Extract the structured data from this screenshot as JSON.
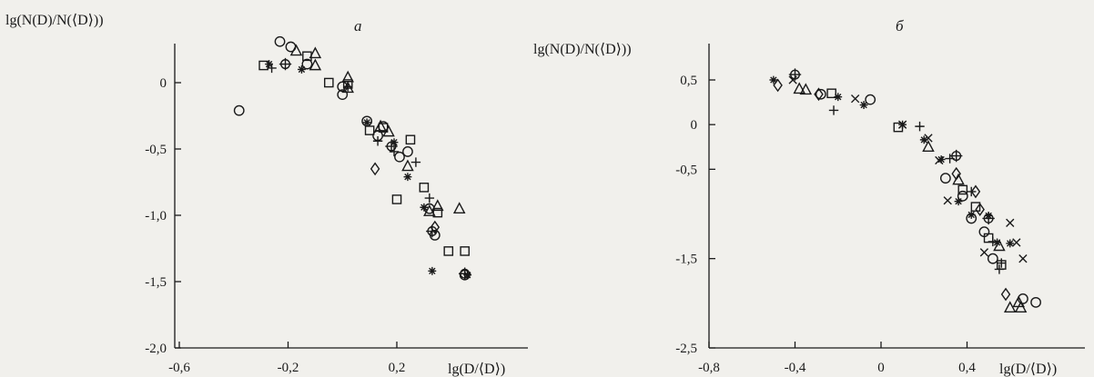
{
  "chart_data": [
    {
      "type": "scatter",
      "panel_label": "a",
      "ylabel": "lg(N(D)/N(⟨D⟩))",
      "xlabel": "lg(D/⟨D⟩)",
      "xlim": [
        -0.6,
        0.65
      ],
      "ylim": [
        -2.0,
        0.35
      ],
      "xticks": [
        -0.6,
        -0.2,
        0.2
      ],
      "xtick_labels": [
        "-0,6",
        "-0,2",
        "0,2"
      ],
      "yticks": [
        0,
        -0.5,
        -1.0,
        -1.5,
        -2.0
      ],
      "ytick_labels": [
        "0",
        "-0,5",
        "-1,0",
        "-1,5",
        "-2,0"
      ],
      "grid": false,
      "series": [
        {
          "marker": "circle",
          "points": [
            [
              -0.38,
              -0.21
            ],
            [
              -0.23,
              0.31
            ],
            [
              -0.19,
              0.27
            ],
            [
              -0.13,
              0.14
            ],
            [
              0.0,
              -0.03
            ],
            [
              0.0,
              -0.09
            ],
            [
              0.09,
              -0.29
            ],
            [
              0.13,
              -0.4
            ],
            [
              0.15,
              -0.33
            ],
            [
              0.21,
              -0.56
            ],
            [
              0.24,
              -0.52
            ],
            [
              0.32,
              -0.95
            ],
            [
              0.34,
              -1.15
            ],
            [
              0.45,
              -1.45
            ]
          ]
        },
        {
          "marker": "square",
          "points": [
            [
              -0.29,
              0.13
            ],
            [
              -0.13,
              0.2
            ],
            [
              -0.05,
              0.0
            ],
            [
              0.02,
              -0.01
            ],
            [
              0.1,
              -0.36
            ],
            [
              0.15,
              -0.34
            ],
            [
              0.25,
              -0.43
            ],
            [
              0.3,
              -0.79
            ],
            [
              0.35,
              -0.98
            ],
            [
              0.39,
              -1.27
            ],
            [
              0.45,
              -1.27
            ],
            [
              0.2,
              -0.88
            ]
          ]
        },
        {
          "marker": "triangle",
          "points": [
            [
              -0.17,
              0.24
            ],
            [
              -0.1,
              0.22
            ],
            [
              -0.1,
              0.13
            ],
            [
              0.02,
              0.04
            ],
            [
              0.02,
              -0.04
            ],
            [
              0.14,
              -0.33
            ],
            [
              0.17,
              -0.37
            ],
            [
              0.24,
              -0.63
            ],
            [
              0.32,
              -0.97
            ],
            [
              0.35,
              -0.93
            ],
            [
              0.43,
              -0.95
            ]
          ]
        },
        {
          "marker": "star",
          "points": [
            [
              -0.27,
              0.14
            ],
            [
              -0.15,
              0.1
            ],
            [
              0.09,
              -0.3
            ],
            [
              0.19,
              -0.45
            ],
            [
              0.24,
              -0.71
            ],
            [
              0.3,
              -0.94
            ],
            [
              0.33,
              -1.42
            ],
            [
              0.46,
              -1.45
            ]
          ]
        },
        {
          "marker": "plus",
          "points": [
            [
              -0.26,
              0.11
            ],
            [
              0.02,
              -0.03
            ],
            [
              0.13,
              -0.44
            ],
            [
              0.19,
              -0.52
            ],
            [
              0.27,
              -0.6
            ],
            [
              0.32,
              -0.87
            ]
          ]
        },
        {
          "marker": "circle-plus",
          "points": [
            [
              -0.21,
              0.14
            ],
            [
              0.18,
              -0.48
            ],
            [
              0.33,
              -1.12
            ],
            [
              0.45,
              -1.44
            ]
          ]
        },
        {
          "marker": "diamond",
          "points": [
            [
              0.12,
              -0.65
            ],
            [
              0.34,
              -1.09
            ]
          ]
        }
      ]
    },
    {
      "type": "scatter",
      "panel_label": "б",
      "ylabel": "lg(N(D)/N(⟨D⟩))",
      "xlabel": "lg(D/⟨D⟩)",
      "xlim": [
        -0.8,
        0.85
      ],
      "ylim": [
        -2.5,
        0.8
      ],
      "xticks": [
        -0.8,
        -0.4,
        0,
        0.4
      ],
      "xtick_labels": [
        "-0,8",
        "-0,4",
        "0",
        "0,4"
      ],
      "yticks": [
        0.5,
        0,
        -0.5,
        -1.5,
        -2.5
      ],
      "ytick_labels": [
        "0,5",
        "0",
        "-0,5",
        "-1,5",
        "-2,5"
      ],
      "grid": false,
      "series": [
        {
          "marker": "diamond",
          "points": [
            [
              -0.48,
              0.44
            ],
            [
              -0.29,
              0.34
            ],
            [
              0.35,
              -0.55
            ],
            [
              0.44,
              -0.75
            ],
            [
              0.46,
              -0.95
            ],
            [
              0.58,
              -1.9
            ]
          ]
        },
        {
          "marker": "circle",
          "points": [
            [
              -0.28,
              0.34
            ],
            [
              -0.05,
              0.28
            ],
            [
              0.3,
              -0.6
            ],
            [
              0.38,
              -0.8
            ],
            [
              0.42,
              -1.05
            ],
            [
              0.48,
              -1.2
            ],
            [
              0.52,
              -1.5
            ],
            [
              0.66,
              -1.95
            ],
            [
              0.72,
              -1.99
            ]
          ]
        },
        {
          "marker": "triangle",
          "points": [
            [
              -0.38,
              0.4
            ],
            [
              -0.35,
              0.39
            ],
            [
              0.22,
              -0.25
            ],
            [
              0.36,
              -0.62
            ],
            [
              0.55,
              -1.36
            ],
            [
              0.6,
              -2.05
            ],
            [
              0.65,
              -2.05
            ],
            [
              0.64,
              -1.99
            ]
          ]
        },
        {
          "marker": "square",
          "points": [
            [
              -0.23,
              0.35
            ],
            [
              0.08,
              -0.03
            ],
            [
              0.38,
              -0.73
            ],
            [
              0.44,
              -0.92
            ],
            [
              0.5,
              -1.27
            ],
            [
              0.56,
              -1.57
            ]
          ]
        },
        {
          "marker": "star",
          "points": [
            [
              -0.5,
              0.5
            ],
            [
              -0.2,
              0.31
            ],
            [
              -0.08,
              0.22
            ],
            [
              0.1,
              0.0
            ],
            [
              0.2,
              -0.17
            ],
            [
              0.28,
              -0.39
            ],
            [
              0.36,
              -0.86
            ],
            [
              0.42,
              -1.01
            ],
            [
              0.5,
              -1.02
            ],
            [
              0.54,
              -1.32
            ],
            [
              0.6,
              -1.33
            ]
          ]
        },
        {
          "marker": "plus",
          "points": [
            [
              -0.22,
              0.16
            ],
            [
              0.18,
              -0.02
            ],
            [
              0.32,
              -0.38
            ],
            [
              0.42,
              -0.75
            ],
            [
              0.52,
              -1.31
            ],
            [
              0.55,
              -1.62
            ],
            [
              0.56,
              -1.55
            ]
          ]
        },
        {
          "marker": "cross",
          "points": [
            [
              -0.41,
              0.5
            ],
            [
              -0.12,
              0.29
            ],
            [
              0.1,
              0.0
            ],
            [
              0.22,
              -0.15
            ],
            [
              0.27,
              -0.4
            ],
            [
              0.31,
              -0.85
            ],
            [
              0.48,
              -1.43
            ],
            [
              0.6,
              -1.1
            ],
            [
              0.63,
              -1.32
            ],
            [
              0.66,
              -1.5
            ]
          ]
        },
        {
          "marker": "circle-plus",
          "points": [
            [
              -0.4,
              0.56
            ],
            [
              0.35,
              -0.35
            ],
            [
              0.5,
              -1.05
            ]
          ]
        }
      ]
    }
  ]
}
